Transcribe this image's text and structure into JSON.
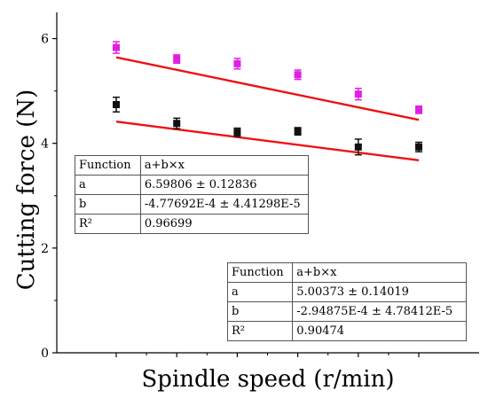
{
  "chart_data": {
    "type": "scatter",
    "xlabel": "Spindle speed (r/min)",
    "ylabel": "Cutting force (N)",
    "ylim": [
      0,
      6.5
    ],
    "yticks": [
      0,
      2,
      4,
      6
    ],
    "x_tick_labels_shown": false,
    "x": [
      2000,
      2500,
      3000,
      3500,
      4000,
      4500
    ],
    "series": [
      {
        "color": "#e020e0",
        "marker": "square",
        "values": [
          5.83,
          5.61,
          5.52,
          5.31,
          4.94,
          4.64
        ],
        "errors": [
          0.11,
          0.08,
          0.1,
          0.09,
          0.11,
          0.07
        ],
        "fit": {
          "intercept": 6.59806,
          "slope": -0.000477692,
          "color": "#ee1111"
        }
      },
      {
        "color": "#111111",
        "marker": "square",
        "values": [
          4.74,
          4.38,
          4.21,
          4.23,
          3.93,
          3.93
        ],
        "errors": [
          0.14,
          0.1,
          0.08,
          0.07,
          0.15,
          0.09
        ],
        "fit": {
          "intercept": 5.00373,
          "slope": -0.000294875,
          "color": "#ee1111"
        }
      }
    ],
    "fit_tables": [
      {
        "rows": [
          {
            "key": "Function",
            "value": "a+b×x"
          },
          {
            "key": "a",
            "value": "6.59806 ± 0.12836"
          },
          {
            "key": "b",
            "value": "-4.77692E-4 ± 4.41298E-5"
          },
          {
            "key": "R²",
            "value": "0.96699"
          }
        ]
      },
      {
        "rows": [
          {
            "key": "Function",
            "value": "a+b×x"
          },
          {
            "key": "a",
            "value": "5.00373 ± 0.14019"
          },
          {
            "key": "b",
            "value": "-2.94875E-4 ± 4.78412E-5"
          },
          {
            "key": "R²",
            "value": "0.90474"
          }
        ]
      }
    ]
  }
}
